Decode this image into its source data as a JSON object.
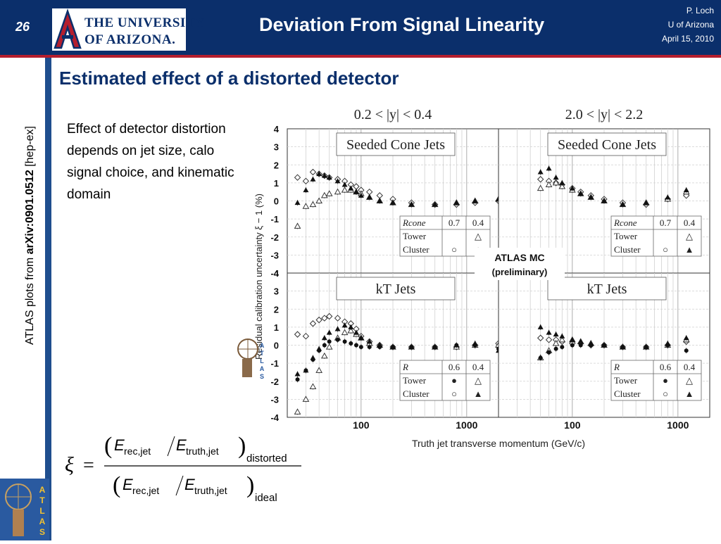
{
  "header": {
    "slide_number": "26",
    "university_line1": "THE UNIVERSITY",
    "university_line2": "OF ARIZONA.",
    "title": "Deviation From Signal Linearity",
    "author": "P. Loch",
    "institution": "U of Arizona",
    "date": "April 15, 2010"
  },
  "sidebar": {
    "prefix": "ATLAS plots from ",
    "arxiv": "arXiv:0901.0512",
    "suffix": " [hep-ex]"
  },
  "subtitle": "Estimated effect of a distorted detector",
  "bullet": "Effect of detector distortion depends on jet size, calo signal choice, and kinematic domain",
  "badge": {
    "preliminary_line1": "ATLAS MC",
    "preliminary_line2": "(preliminary)"
  },
  "logo_letters": [
    "A",
    "T",
    "L",
    "A",
    "S"
  ],
  "formula": {
    "xi": "ξ",
    "equals": "=",
    "e": "E",
    "rec": "rec,jet",
    "truth": "truth,jet",
    "distorted": "distorted",
    "ideal": "ideal"
  },
  "chart_data": {
    "type": "scatter",
    "ylabel": "Residual calibration uncertainty ξ − 1 (%)",
    "xlabel": "Truth jet transverse momentum (GeV/c)",
    "x_scale": "log",
    "xlim": [
      20,
      2000
    ],
    "ylim": [
      -4,
      4
    ],
    "yticks": [
      "4",
      "3",
      "2",
      "1",
      "0",
      "-1",
      "-2",
      "-3",
      "-4"
    ],
    "xticks": [
      {
        "value": 100,
        "label": "100"
      },
      {
        "value": 1000,
        "label": "1000"
      }
    ],
    "grid": true,
    "column_titles": [
      "0.2 < |y| < 0.4",
      "2.0 < |y| < 2.2"
    ],
    "row_titles": [
      "Seeded Cone Jets",
      "kT Jets"
    ],
    "legends": [
      {
        "header": [
          "Rcone",
          "0.7",
          "0.4"
        ],
        "rows": [
          [
            "Tower",
            "",
            "△"
          ],
          [
            "Cluster",
            "○",
            "▲"
          ]
        ]
      },
      {
        "header": [
          "Rcone",
          "0.7",
          "0.4"
        ],
        "rows": [
          [
            "Tower",
            "",
            "△"
          ],
          [
            "Cluster",
            "○",
            "▲"
          ]
        ]
      },
      {
        "header": [
          "R",
          "0.6",
          "0.4"
        ],
        "rows": [
          [
            "Tower",
            "●",
            "△"
          ],
          [
            "Cluster",
            "○",
            "▲"
          ]
        ]
      },
      {
        "header": [
          "R",
          "0.6",
          "0.4"
        ],
        "rows": [
          [
            "Tower",
            "●",
            "△"
          ],
          [
            "Cluster",
            "○",
            "▲"
          ]
        ]
      }
    ],
    "series_markers": [
      "open-diamond",
      "open-triangle",
      "filled-triangle",
      "filled-circle"
    ],
    "panels": [
      {
        "row": 0,
        "col": 0,
        "series": [
          {
            "marker": "open-diamond",
            "x": [
              25,
              30,
              35,
              40,
              45,
              50,
              60,
              70,
              80,
              90,
              100,
              120,
              150,
              200,
              300,
              500,
              800,
              1200,
              2000
            ],
            "y": [
              1.3,
              1.1,
              1.6,
              1.5,
              1.4,
              1.3,
              1.2,
              1.1,
              0.9,
              0.8,
              0.6,
              0.5,
              0.3,
              0.1,
              -0.1,
              -0.2,
              -0.2,
              -0.1,
              0.0
            ]
          },
          {
            "marker": "open-triangle",
            "x": [
              25,
              30,
              35,
              40,
              45,
              50,
              60,
              70,
              80,
              90,
              100,
              120,
              150,
              200,
              300,
              500,
              800,
              1200,
              2000
            ],
            "y": [
              -1.4,
              -0.3,
              -0.2,
              0.0,
              0.3,
              0.4,
              0.5,
              0.6,
              0.6,
              0.5,
              0.4,
              0.2,
              0.0,
              -0.1,
              -0.2,
              -0.2,
              -0.1,
              0.0,
              0.1
            ]
          },
          {
            "marker": "filled-triangle",
            "x": [
              25,
              30,
              35,
              40,
              45,
              50,
              60,
              70,
              80,
              90,
              100,
              120,
              150,
              200,
              300,
              500,
              800,
              1200,
              2000
            ],
            "y": [
              -0.1,
              0.6,
              1.2,
              1.5,
              1.4,
              1.3,
              1.1,
              0.9,
              0.7,
              0.5,
              0.3,
              0.2,
              0.0,
              -0.1,
              -0.2,
              -0.2,
              -0.1,
              0.0,
              0.1
            ]
          }
        ]
      },
      {
        "row": 0,
        "col": 1,
        "series": [
          {
            "marker": "open-diamond",
            "x": [
              50,
              60,
              70,
              80,
              100,
              120,
              150,
              200,
              300,
              500,
              800,
              1200
            ],
            "y": [
              1.2,
              1.1,
              1.0,
              0.9,
              0.7,
              0.5,
              0.3,
              0.1,
              -0.1,
              -0.2,
              0.1,
              0.3
            ]
          },
          {
            "marker": "open-triangle",
            "x": [
              50,
              60,
              70,
              80,
              100,
              120,
              150,
              200,
              300,
              500,
              800,
              1200
            ],
            "y": [
              0.7,
              0.9,
              1.0,
              0.8,
              0.6,
              0.4,
              0.2,
              0.0,
              -0.2,
              -0.1,
              0.1,
              0.5
            ]
          },
          {
            "marker": "filled-triangle",
            "x": [
              50,
              60,
              70,
              80,
              100,
              120,
              150,
              200,
              300,
              500,
              800,
              1200
            ],
            "y": [
              1.6,
              1.8,
              1.3,
              1.0,
              0.7,
              0.4,
              0.2,
              0.0,
              -0.2,
              -0.1,
              0.2,
              0.6
            ]
          }
        ]
      },
      {
        "row": 1,
        "col": 0,
        "series": [
          {
            "marker": "open-diamond",
            "x": [
              25,
              30,
              35,
              40,
              45,
              50,
              60,
              70,
              80,
              90,
              100,
              120,
              150,
              200,
              300,
              500,
              800,
              1200,
              2000
            ],
            "y": [
              0.6,
              0.5,
              1.2,
              1.4,
              1.5,
              1.6,
              1.5,
              1.3,
              1.2,
              0.9,
              0.5,
              0.2,
              0.0,
              -0.1,
              -0.1,
              -0.1,
              -0.1,
              0.0,
              0.1
            ]
          },
          {
            "marker": "open-triangle",
            "x": [
              25,
              30,
              35,
              40,
              45,
              50,
              60,
              70,
              80,
              90,
              100,
              120,
              150,
              200,
              300,
              500,
              800,
              1200,
              2000
            ],
            "y": [
              -3.7,
              -3.0,
              -2.3,
              -1.4,
              -0.6,
              -0.1,
              0.4,
              0.7,
              0.8,
              0.6,
              0.4,
              0.1,
              0.0,
              -0.1,
              -0.1,
              -0.1,
              -0.1,
              0.0,
              0.0
            ]
          },
          {
            "marker": "filled-triangle",
            "x": [
              25,
              30,
              35,
              40,
              45,
              50,
              60,
              70,
              80,
              90,
              100,
              120,
              150,
              200,
              300,
              500,
              800,
              1200,
              2000
            ],
            "y": [
              -1.6,
              -1.4,
              -0.7,
              -0.2,
              0.4,
              0.7,
              0.9,
              1.1,
              1.0,
              0.7,
              0.4,
              0.2,
              0.0,
              -0.1,
              -0.1,
              -0.1,
              0.0,
              0.1,
              -0.3
            ]
          },
          {
            "marker": "filled-circle",
            "x": [
              25,
              30,
              35,
              40,
              45,
              50,
              60,
              70,
              80,
              90,
              100,
              120,
              150,
              200,
              300,
              500,
              800,
              1200,
              2000
            ],
            "y": [
              -1.9,
              -1.4,
              -0.8,
              -0.3,
              0.0,
              0.2,
              0.3,
              0.2,
              0.1,
              0.0,
              -0.1,
              -0.1,
              -0.1,
              -0.1,
              -0.1,
              -0.1,
              0.0,
              0.0,
              -0.2
            ]
          }
        ]
      },
      {
        "row": 1,
        "col": 1,
        "series": [
          {
            "marker": "open-diamond",
            "x": [
              50,
              60,
              70,
              80,
              100,
              120,
              150,
              200,
              300,
              500,
              800,
              1200
            ],
            "y": [
              0.4,
              0.3,
              0.3,
              0.2,
              0.1,
              0.1,
              0.0,
              0.0,
              -0.1,
              -0.1,
              0.0,
              0.2
            ]
          },
          {
            "marker": "open-triangle",
            "x": [
              50,
              60,
              70,
              80,
              100,
              120,
              150,
              200,
              300,
              500,
              800,
              1200
            ],
            "y": [
              -0.7,
              -0.3,
              0.1,
              0.3,
              0.3,
              0.2,
              0.1,
              0.0,
              -0.1,
              -0.1,
              0.0,
              0.3
            ]
          },
          {
            "marker": "filled-triangle",
            "x": [
              50,
              60,
              70,
              80,
              100,
              120,
              150,
              200,
              300,
              500,
              800,
              1200
            ],
            "y": [
              1.0,
              0.7,
              0.6,
              0.5,
              0.3,
              0.2,
              0.1,
              0.0,
              -0.1,
              -0.1,
              0.1,
              0.4
            ]
          },
          {
            "marker": "filled-circle",
            "x": [
              50,
              60,
              70,
              80,
              100,
              120,
              150,
              200,
              300,
              500,
              800,
              1200
            ],
            "y": [
              -0.7,
              -0.4,
              -0.2,
              -0.1,
              0.0,
              0.0,
              0.0,
              0.0,
              -0.1,
              -0.1,
              0.0,
              -0.3
            ]
          }
        ]
      }
    ]
  }
}
